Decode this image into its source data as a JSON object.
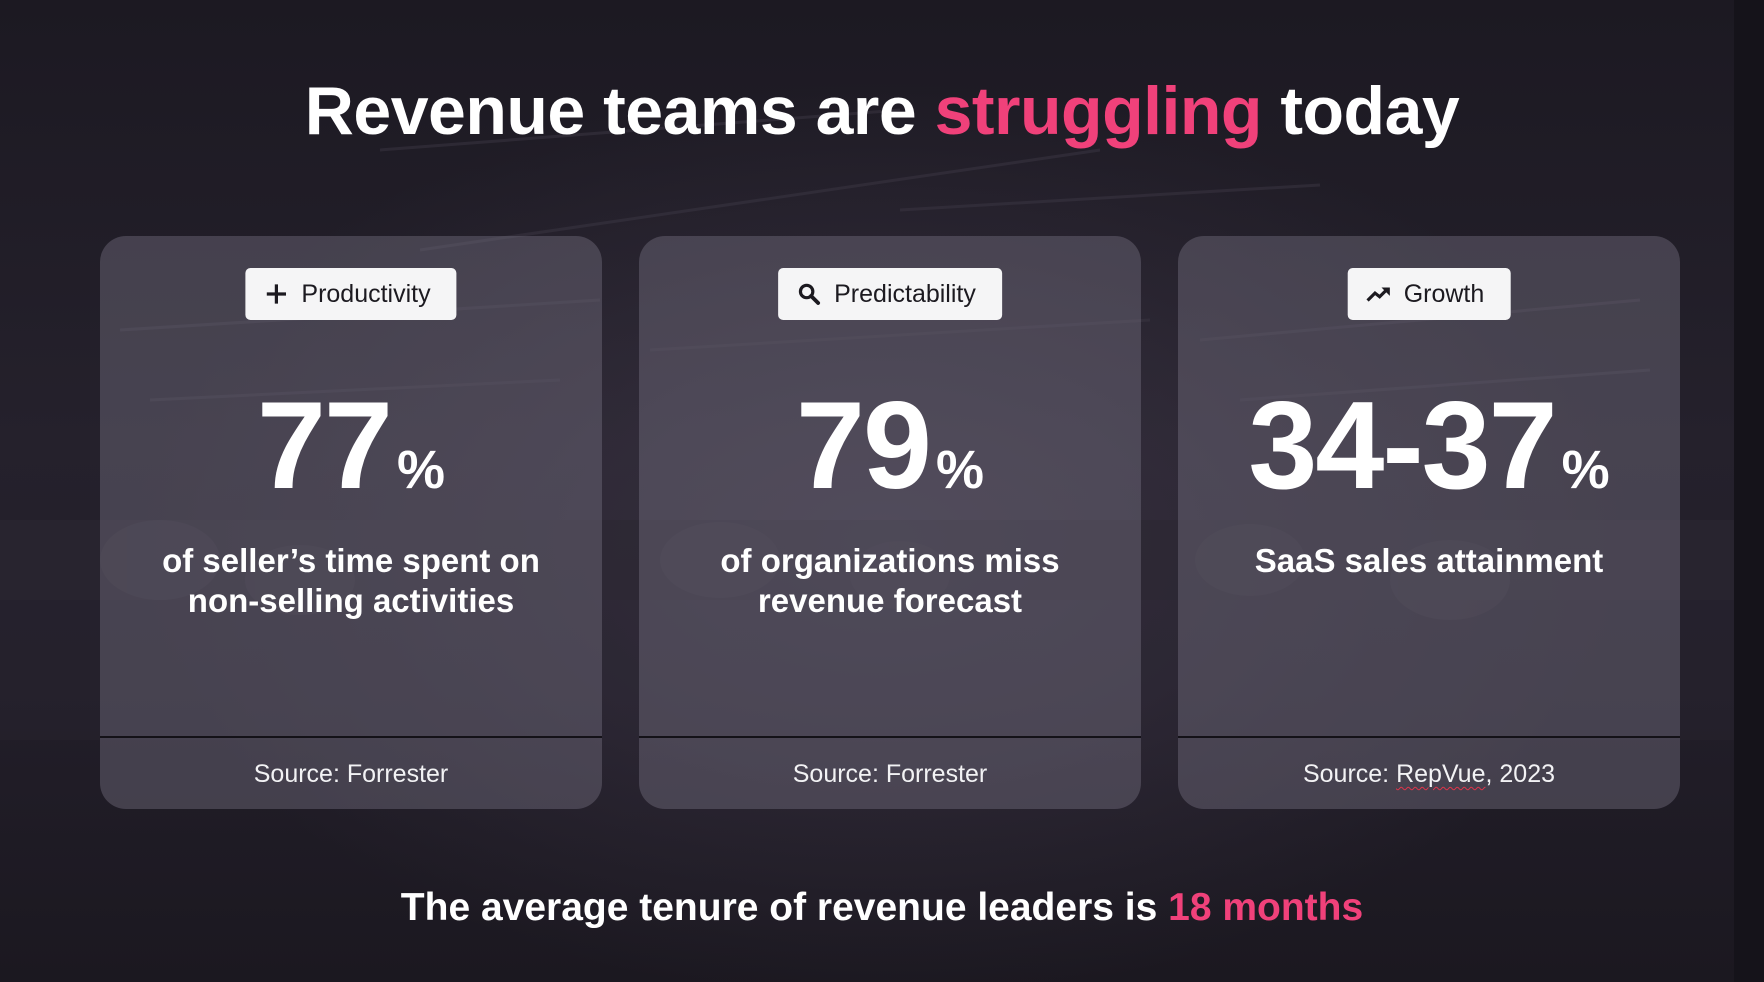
{
  "headline": {
    "before": "Revenue teams are ",
    "highlight": "struggling",
    "after": " today"
  },
  "colors": {
    "accent": "#f0417a",
    "card_bg": "rgba(120,114,130,0.42)",
    "tag_bg": "#f5f5f6"
  },
  "cards": [
    {
      "tag_icon": "plus-icon",
      "tag_label": "Productivity",
      "stat_value": "77",
      "stat_unit": "%",
      "description_line1": "of seller’s time spent on",
      "description_line2": "non-selling activities",
      "source_prefix": "Source: ",
      "source_name": "Forrester",
      "source_suffix": ""
    },
    {
      "tag_icon": "search-icon",
      "tag_label": "Predictability",
      "stat_value": "79",
      "stat_unit": "%",
      "description_line1": "of organizations miss",
      "description_line2": "revenue forecast",
      "source_prefix": "Source: ",
      "source_name": "Forrester",
      "source_suffix": ""
    },
    {
      "tag_icon": "trending-up-icon",
      "tag_label": "Growth",
      "stat_value": "34-37",
      "stat_unit": "%",
      "description_line1": "SaaS sales attainment",
      "description_line2": "",
      "source_prefix": "Source: ",
      "source_name": "RepVue",
      "source_suffix": ", 2023"
    }
  ],
  "footer": {
    "before": "The average tenure of revenue leaders is ",
    "highlight": "18 months"
  }
}
